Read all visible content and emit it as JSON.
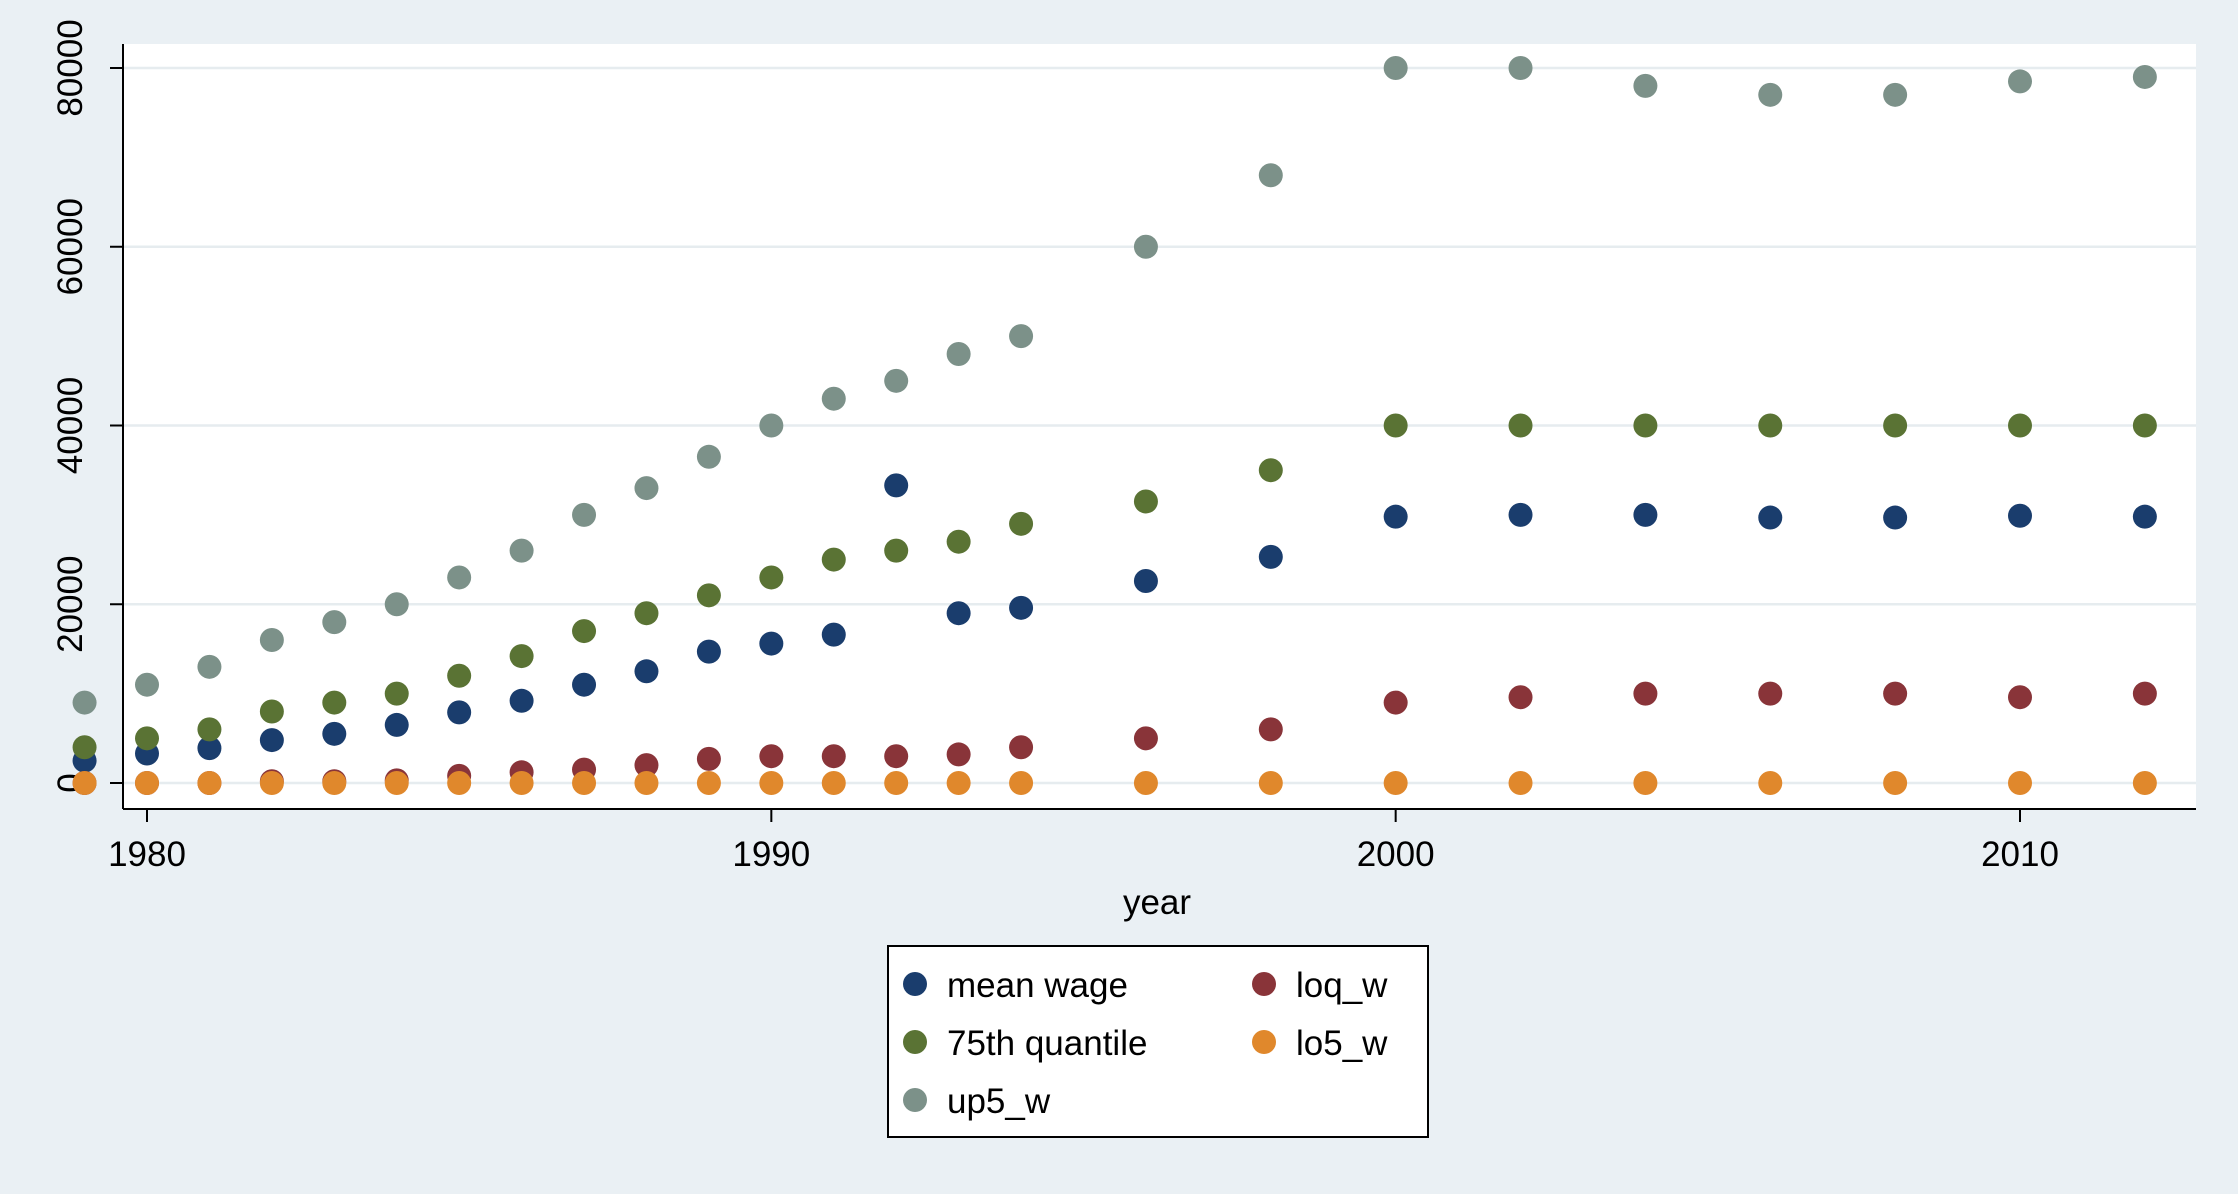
{
  "chart_data": {
    "type": "scatter",
    "title": "",
    "xlabel": "year",
    "ylabel": "",
    "xlim": [
      1979,
      2012
    ],
    "ylim": [
      0,
      80000
    ],
    "x_ticks": [
      1980,
      1990,
      2000,
      2010
    ],
    "y_ticks": [
      0,
      20000,
      40000,
      60000,
      80000
    ],
    "grid": "horizontal",
    "legend_position": "bottom",
    "x": [
      1979,
      1980,
      1981,
      1982,
      1983,
      1984,
      1985,
      1986,
      1987,
      1988,
      1989,
      1990,
      1991,
      1992,
      1993,
      1994,
      1996,
      1998,
      2000,
      2002,
      2004,
      2006,
      2008,
      2010,
      2012
    ],
    "series": [
      {
        "name": "mean wage",
        "color": "#1a3d6d",
        "values": [
          2500,
          3300,
          3900,
          4800,
          5500,
          6500,
          7900,
          9200,
          11000,
          12500,
          14700,
          15600,
          16600,
          33300,
          19000,
          19600,
          22600,
          25300,
          29800,
          30000,
          30000,
          29700,
          29700,
          29900,
          29800
        ]
      },
      {
        "name": "75th quantile",
        "color": "#5a7334",
        "values": [
          4000,
          5000,
          6000,
          8000,
          9000,
          10000,
          12000,
          14200,
          17000,
          19000,
          21000,
          23000,
          25000,
          26000,
          27000,
          29000,
          31500,
          35000,
          40000,
          40000,
          40000,
          40000,
          40000,
          40000,
          40000
        ]
      },
      {
        "name": "up5_w",
        "color": "#7c9189",
        "values": [
          9000,
          11000,
          13000,
          16000,
          18000,
          20000,
          23000,
          26000,
          30000,
          33000,
          36500,
          40000,
          43000,
          45000,
          48000,
          50000,
          60000,
          68000,
          80000,
          80000,
          78000,
          77000,
          77000,
          78500,
          79000
        ]
      },
      {
        "name": "loq_w",
        "color": "#893439",
        "values": [
          0,
          0,
          0,
          200,
          200,
          300,
          800,
          1200,
          1500,
          2000,
          2700,
          3000,
          3000,
          3000,
          3200,
          4000,
          5000,
          6000,
          9000,
          9600,
          10000,
          10000,
          10000,
          9600,
          10000
        ]
      },
      {
        "name": "lo5_w",
        "color": "#e0882c",
        "values": [
          0,
          0,
          0,
          0,
          0,
          0,
          0,
          0,
          0,
          0,
          0,
          0,
          0,
          0,
          0,
          0,
          0,
          0,
          0,
          0,
          0,
          0,
          0,
          0,
          0
        ]
      }
    ],
    "legend": {
      "rows": [
        [
          {
            "label": "mean wage",
            "series": 0
          },
          {
            "label": "loq_w",
            "series": 3
          }
        ],
        [
          {
            "label": "75th quantile",
            "series": 1
          },
          {
            "label": "lo5_w",
            "series": 4
          }
        ],
        [
          {
            "label": "up5_w",
            "series": 2
          }
        ]
      ]
    }
  }
}
